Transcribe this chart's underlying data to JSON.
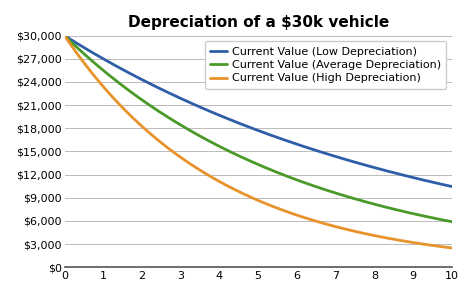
{
  "title": "Depreciation of a $30k vehicle",
  "initial_value": 30000,
  "years": 10,
  "rates": {
    "low": 0.1,
    "average": 0.15,
    "high": 0.22
  },
  "colors": {
    "low": "#2E5EA8",
    "average": "#4A9A2A",
    "high": "#E8922A"
  },
  "legend_labels": {
    "low": "Current Value (Low Depreciation)",
    "average": "Current Value (Average Depreciation)",
    "high": "Current Value (High Depreciation)"
  },
  "ylim": [
    0,
    30000
  ],
  "xlim": [
    0,
    10
  ],
  "ytick_step": 3000,
  "xtick_step": 1,
  "line_width": 2.0,
  "background_color": "#FFFFFF",
  "grid_color": "#BBBBBB",
  "title_fontsize": 11,
  "legend_fontsize": 8,
  "tick_fontsize": 8,
  "figsize": [
    4.61,
    2.97
  ],
  "dpi": 100
}
